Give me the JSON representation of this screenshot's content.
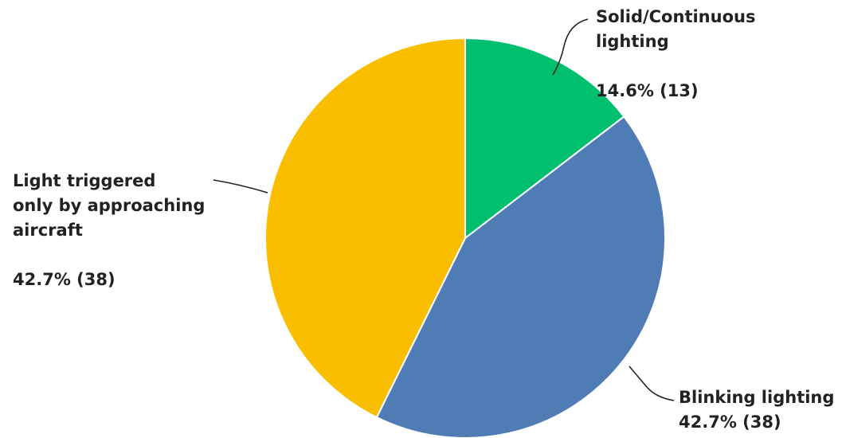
{
  "chart_data": {
    "type": "pie",
    "slices": [
      {
        "label_lines": [
          "Solid/Continuous",
          "lighting"
        ],
        "value_label": "14.6% (13)",
        "percent": 14.6,
        "count": 13,
        "color": "#00bf6f"
      },
      {
        "label_lines": [
          "Blinking lighting"
        ],
        "value_label": "42.7% (38)",
        "percent": 42.7,
        "count": 38,
        "color": "#507cb6"
      },
      {
        "label_lines": [
          "Light triggered",
          "only by approaching",
          "aircraft"
        ],
        "value_label": "42.7% (38)",
        "percent": 42.7,
        "count": 38,
        "color": "#f9be00"
      }
    ],
    "start_angle": "12 o'clock",
    "direction": "clockwise",
    "legend": "none"
  }
}
